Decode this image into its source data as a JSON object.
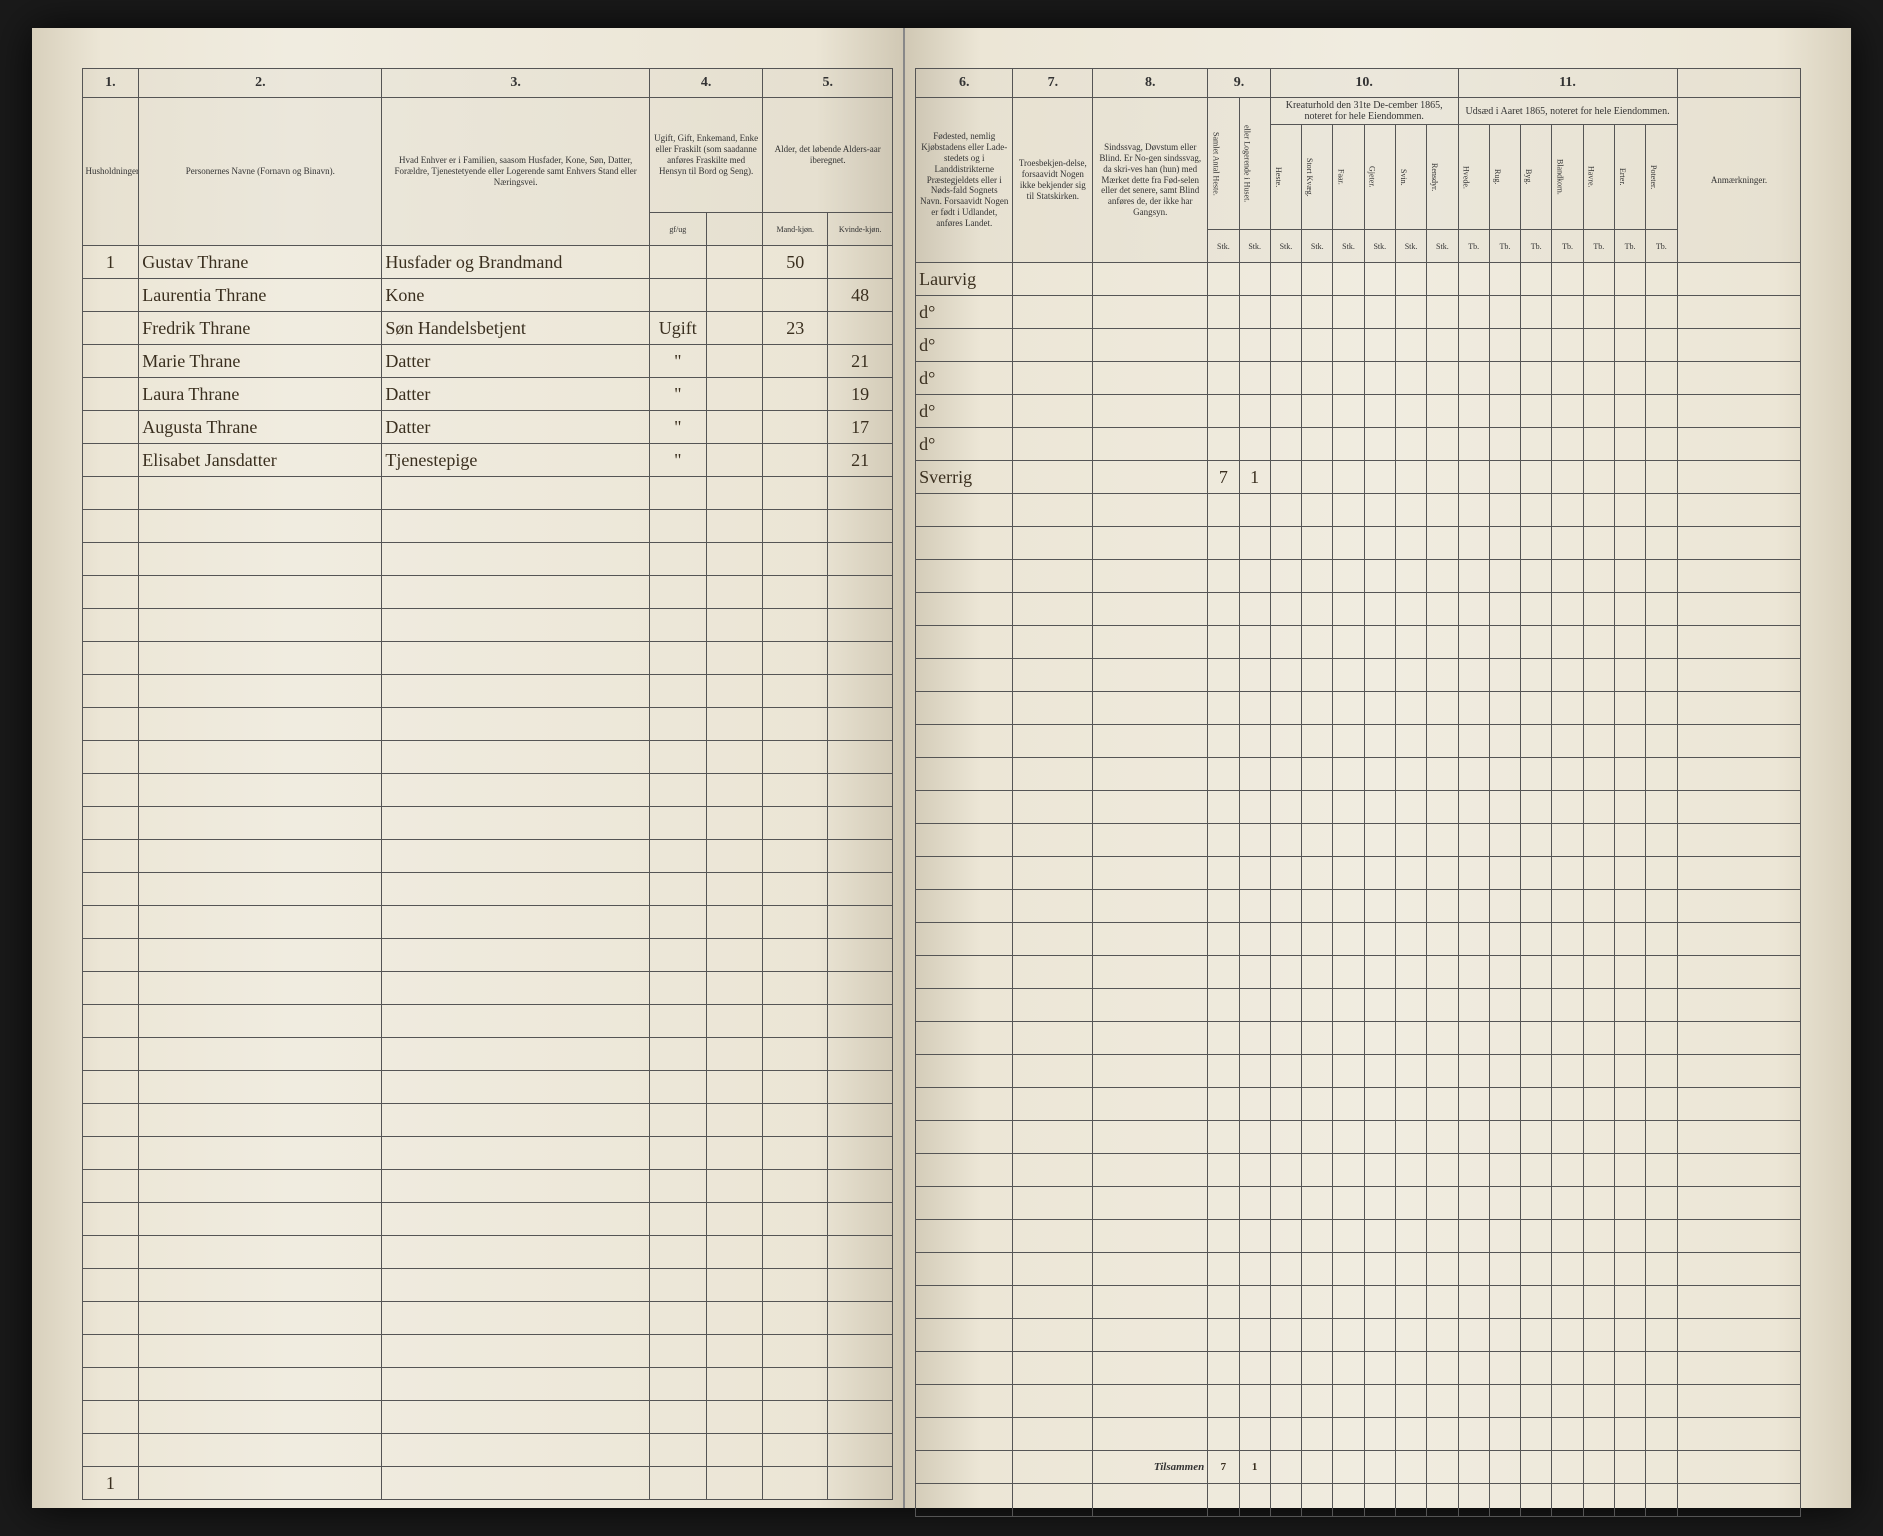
{
  "left": {
    "columns": {
      "c1": {
        "num": "1.",
        "header": "Husholdninger."
      },
      "c2": {
        "num": "2.",
        "header": "Personernes Navne (Fornavn og Binavn)."
      },
      "c3": {
        "num": "3.",
        "header": "Hvad Enhver er i Familien, saasom Husfader, Kone, Søn, Datter, Forældre, Tjenestetyende eller Logerende samt Enhvers Stand eller Næringsvei."
      },
      "c4": {
        "num": "4.",
        "header": "Ugift, Gift, Enkemand, Enke eller Fraskilt (som saadanne anføres Fraskilte med Hensyn til Bord og Seng).",
        "sub_a": "gf/ug",
        "sub_b": ""
      },
      "c5": {
        "num": "5.",
        "header": "Alder, det løbende Alders-aar iberegnet.",
        "sub_a": "Mand-kjøn.",
        "sub_b": "Kvinde-kjøn."
      }
    },
    "rows": [
      {
        "hh": "1",
        "name": "Gustav Thrane",
        "rel": "Husfader og Brandmand",
        "mar": "",
        "age_m": "50",
        "age_f": ""
      },
      {
        "hh": "",
        "name": "Laurentia Thrane",
        "rel": "Kone",
        "mar": "",
        "age_m": "",
        "age_f": "48"
      },
      {
        "hh": "",
        "name": "Fredrik Thrane",
        "rel": "Søn Handelsbetjent",
        "mar": "Ugift",
        "age_m": "23",
        "age_f": ""
      },
      {
        "hh": "",
        "name": "Marie Thrane",
        "rel": "Datter",
        "mar": "\"",
        "age_m": "",
        "age_f": "21"
      },
      {
        "hh": "",
        "name": "Laura Thrane",
        "rel": "Datter",
        "mar": "\"",
        "age_m": "",
        "age_f": "19"
      },
      {
        "hh": "",
        "name": "Augusta Thrane",
        "rel": "Datter",
        "mar": "\"",
        "age_m": "",
        "age_f": "17"
      },
      {
        "hh": "",
        "name": "Elisabet Jansdatter",
        "rel": "Tjenestepige",
        "mar": "\"",
        "age_m": "",
        "age_f": "21"
      }
    ],
    "footer": "1"
  },
  "right": {
    "columns": {
      "c6": {
        "num": "6.",
        "header": "Fødested, nemlig Kjøbstadens eller Lade-stedets og i Landdistrikterne Præstegjeldets eller i Nøds-fald Sognets Navn. Forsaavidt Nogen er født i Udlandet, anføres Landet."
      },
      "c7": {
        "num": "7.",
        "header": "Troesbekjen-delse, forsaavidt Nogen ikke bekjender sig til Statskirken."
      },
      "c8": {
        "num": "8.",
        "header": "Sindssvag, Døvstum eller Blind. Er No-gen sindssvag, da skri-ves han (hun) med Mærket dette fra Fød-selen eller det senere, samt Blind anføres de, der ikke har Gangsyn."
      },
      "c9": {
        "num": "9.",
        "sub_a": "Samlet Antal Heste.",
        "sub_b": "eller Logerende i Huset."
      },
      "c10": {
        "num": "10.",
        "header": "Kreaturhold den 31te De-cember 1865, noteret for hele Eiendommen.",
        "subs": [
          "Heste.",
          "Stort Kvæg.",
          "Faar.",
          "Gjeter.",
          "Svin.",
          "Rensdyr."
        ],
        "unit": "Stk."
      },
      "c11": {
        "num": "11.",
        "header": "Udsæd i Aaret 1865, noteret for hele Eiendommen.",
        "subs": [
          "Hvede.",
          "Rug.",
          "Byg.",
          "Blandkorn.",
          "Havre.",
          "Erter.",
          "Poteter."
        ],
        "unit": "Tb."
      },
      "c12": {
        "header": "Anmærkninger."
      }
    },
    "rows": [
      {
        "birth": "Laurvig",
        "faith": "",
        "cond": "",
        "c9a": "",
        "c9b": ""
      },
      {
        "birth": "d°",
        "faith": "",
        "cond": "",
        "c9a": "",
        "c9b": ""
      },
      {
        "birth": "d°",
        "faith": "",
        "cond": "",
        "c9a": "",
        "c9b": ""
      },
      {
        "birth": "d°",
        "faith": "",
        "cond": "",
        "c9a": "",
        "c9b": ""
      },
      {
        "birth": "d°",
        "faith": "",
        "cond": "",
        "c9a": "",
        "c9b": ""
      },
      {
        "birth": "d°",
        "faith": "",
        "cond": "",
        "c9a": "",
        "c9b": ""
      },
      {
        "birth": "Sverrig",
        "faith": "",
        "cond": "",
        "c9a": "7",
        "c9b": "1"
      }
    ],
    "sum_label": "Tilsammen",
    "sum": {
      "c9a": "7",
      "c9b": "1"
    }
  },
  "style": {
    "paper_bg": "#f0ece0",
    "ink": "#3a2f1f",
    "rule": "#555555",
    "empty_rows": 30
  }
}
